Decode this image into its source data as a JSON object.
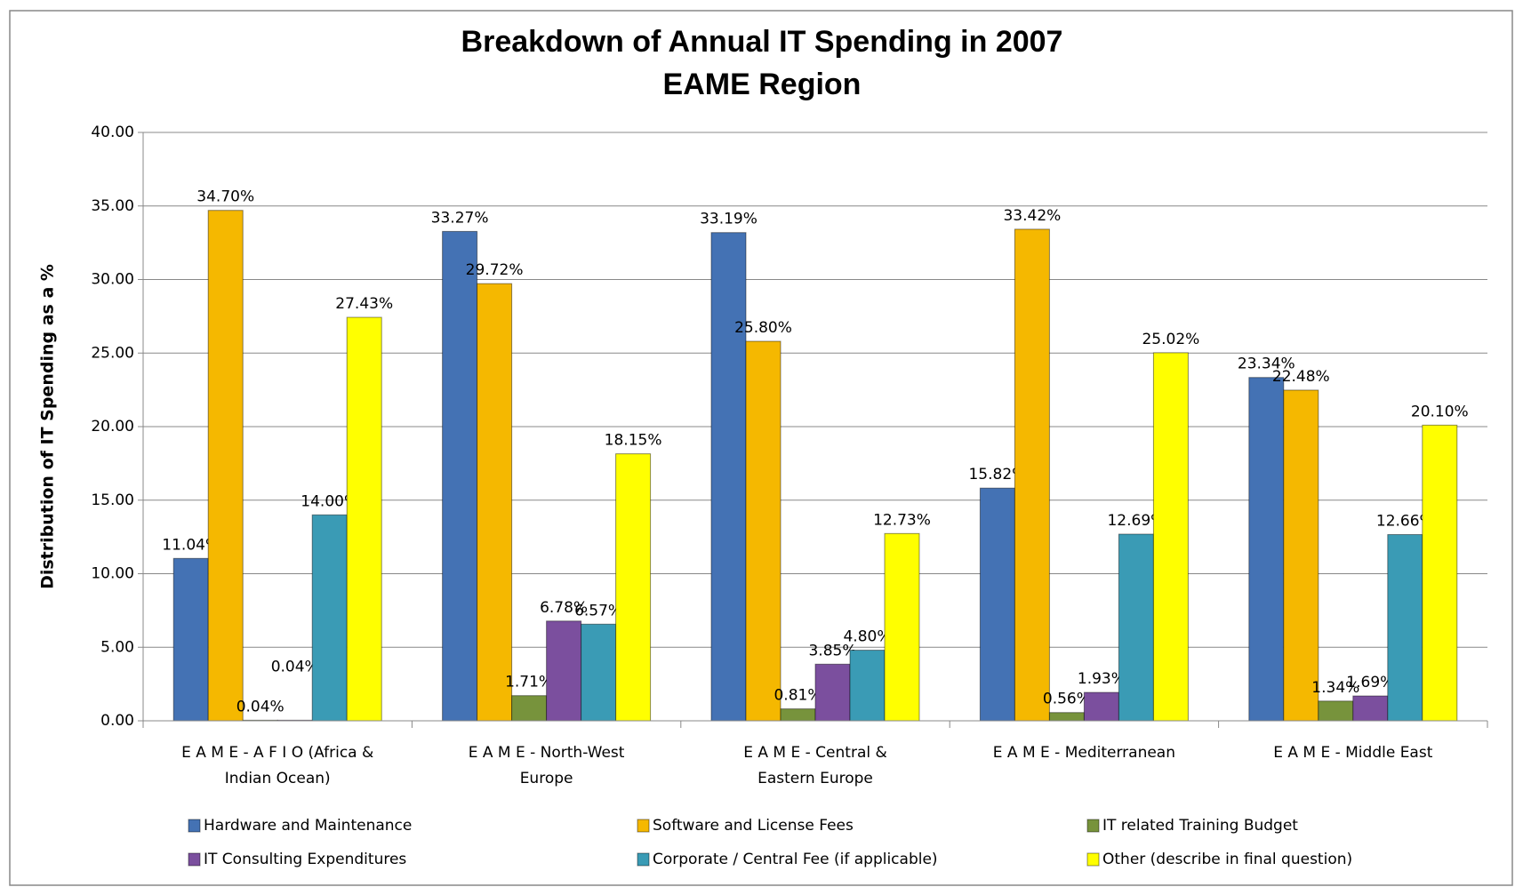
{
  "chart_data": {
    "type": "bar",
    "title": "Breakdown of Annual IT Spending in 2007",
    "subtitle": "EAME Region",
    "y_label": "Distribution of IT Spending as a %",
    "categories": [
      [
        "E A M E - A F I O (Africa &",
        "Indian Ocean)"
      ],
      [
        "E A M E - North-West",
        "Europe"
      ],
      [
        "E A M E - Central &",
        "Eastern Europe"
      ],
      [
        "E A M E - Mediterranean"
      ],
      [
        "E A M E - Middle East"
      ]
    ],
    "series": [
      {
        "name": "Hardware and Maintenance",
        "color": "#4472b4",
        "values": [
          11.04,
          33.27,
          33.19,
          15.82,
          23.34
        ],
        "value_labels": [
          "11.04%",
          "33.27%",
          "33.19%",
          "15.82%",
          "23.34%"
        ]
      },
      {
        "name": "Software and License Fees",
        "color": "#f5b800",
        "values": [
          34.7,
          29.72,
          25.8,
          33.42,
          22.48
        ],
        "value_labels": [
          "34.70%",
          "29.72%",
          "25.80%",
          "33.42%",
          "22.48%"
        ]
      },
      {
        "name": "IT related Training Budget",
        "color": "#77933c",
        "values": [
          0.04,
          1.71,
          0.81,
          0.56,
          1.34
        ],
        "value_labels": [
          "0.04%",
          "1.71%",
          "0.81%",
          "0.56%",
          "1.34%"
        ]
      },
      {
        "name": "IT Consulting Expenditures",
        "color": "#7b4f9e",
        "values": [
          0.04,
          6.78,
          3.85,
          1.93,
          1.69
        ],
        "value_labels": [
          "0.04%",
          "6.78%",
          "3.85%",
          "1.93%",
          "1.69%"
        ]
      },
      {
        "name": "Corporate / Central Fee (if applicable)",
        "color": "#3a9bb5",
        "values": [
          14.0,
          6.57,
          4.8,
          12.69,
          12.66
        ],
        "value_labels": [
          "14.00%",
          "6.57%",
          "4.80%",
          "12.69%",
          "12.66%"
        ]
      },
      {
        "name": "Other (describe in final question)",
        "color": "#ffff00",
        "values": [
          27.43,
          18.15,
          12.73,
          25.02,
          20.1
        ],
        "value_labels": [
          "27.43%",
          "18.15%",
          "12.73%",
          "25.02%",
          "20.10%"
        ]
      }
    ],
    "ylim": [
      0,
      40
    ],
    "yticks": [
      {
        "value": 0,
        "label": "0.00"
      },
      {
        "value": 5,
        "label": "5.00"
      },
      {
        "value": 10,
        "label": "10.00"
      },
      {
        "value": 15,
        "label": "15.00"
      },
      {
        "value": 20,
        "label": "20.00"
      },
      {
        "value": 25,
        "label": "25.00"
      },
      {
        "value": 30,
        "label": "30.00"
      },
      {
        "value": 35,
        "label": "35.00"
      },
      {
        "value": 40,
        "label": "40.00"
      }
    ],
    "grid": true,
    "legend": "bottom"
  }
}
